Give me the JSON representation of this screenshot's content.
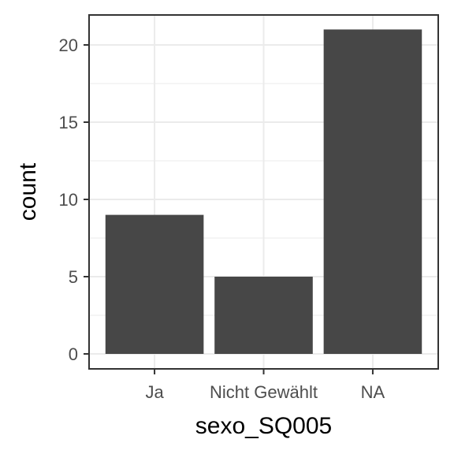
{
  "chart_data": {
    "type": "bar",
    "categories": [
      "Ja",
      "Nicht Gewählt",
      "NA"
    ],
    "values": [
      9,
      5,
      21
    ],
    "xlabel": "sexo_SQ005",
    "ylabel": "count",
    "ylim": [
      0,
      22
    ],
    "yticks": [
      0,
      5,
      10,
      15,
      20
    ],
    "grid": true,
    "bar_color": "#474747",
    "grid_color": "#ebebeb",
    "panel_border_color": "#333333"
  }
}
